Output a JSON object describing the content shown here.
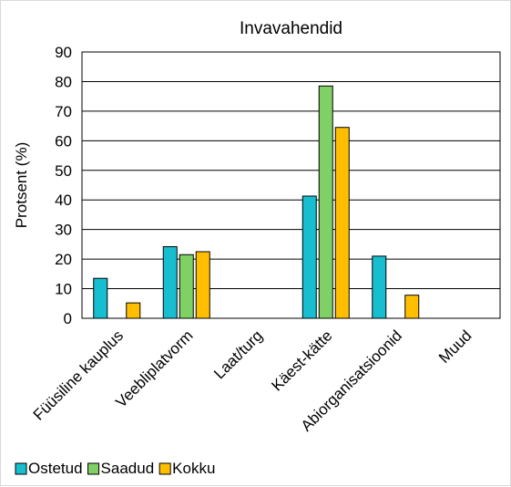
{
  "chart_data": {
    "type": "bar",
    "title": "Invavahendid",
    "ylabel": "Protsent (%)",
    "xlabel": "",
    "ylim": [
      0,
      90
    ],
    "yticks": [
      0,
      10,
      20,
      30,
      40,
      50,
      60,
      70,
      80,
      90
    ],
    "grid": true,
    "legend_position": "bottom-left",
    "categories": [
      "Füüsiline kauplus",
      "Veebliplatvorm",
      "Laat/turg",
      "Käest-kätte",
      "Abiorganisatsioonid",
      "Muud"
    ],
    "series": [
      {
        "name": "Ostetud",
        "color": "#17BECF",
        "values": [
          13.5,
          24.2,
          0,
          41.3,
          21.0,
          0
        ]
      },
      {
        "name": "Saadud",
        "color": "#7FD165",
        "values": [
          0,
          21.5,
          0,
          78.5,
          0,
          0
        ]
      },
      {
        "name": "Kokku",
        "color": "#FFBF00",
        "values": [
          5.2,
          22.5,
          0,
          64.5,
          7.8,
          0
        ]
      }
    ]
  }
}
